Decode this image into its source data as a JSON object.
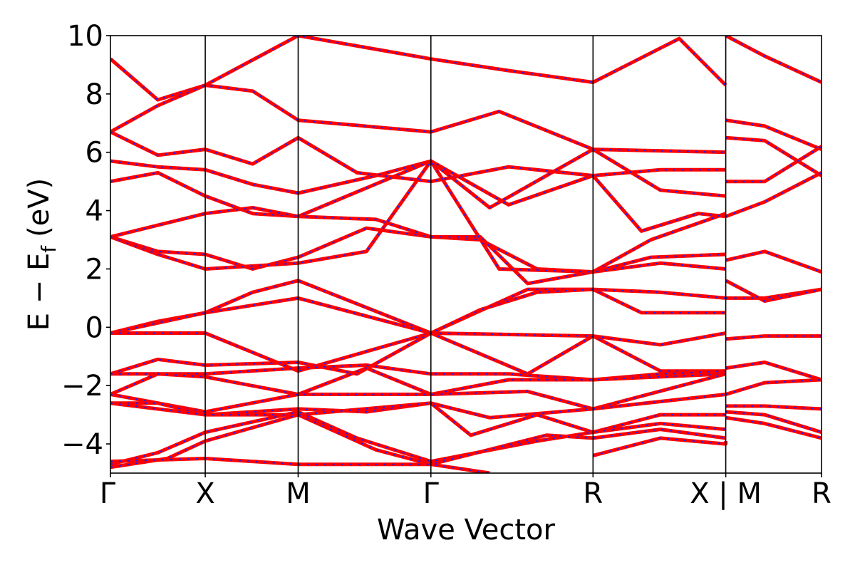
{
  "chart_data": {
    "type": "line",
    "xlabel": "Wave Vector",
    "ylabel_parts": {
      "main": "E − E",
      "sub": "f",
      "unit": "(eV)"
    },
    "ylim": [
      -5,
      10
    ],
    "yticks": [
      {
        "value": 10,
        "label": "10"
      },
      {
        "value": 8,
        "label": "8"
      },
      {
        "value": 6,
        "label": "6"
      },
      {
        "value": 4,
        "label": "4"
      },
      {
        "value": 2,
        "label": "2"
      },
      {
        "value": 0,
        "label": "0"
      },
      {
        "value": -2,
        "label": "−2"
      },
      {
        "value": -4,
        "label": "−4"
      }
    ],
    "xlim": [
      0,
      7.5
    ],
    "high_symmetry_points": [
      {
        "x": 0.0,
        "label": "Γ"
      },
      {
        "x": 1.0,
        "label": "X"
      },
      {
        "x": 1.98,
        "label": "M"
      },
      {
        "x": 3.38,
        "label": "Γ"
      },
      {
        "x": 5.09,
        "label": "R"
      },
      {
        "x": 6.49,
        "label": "X | M"
      },
      {
        "x": 7.5,
        "label": "R"
      }
    ],
    "grid": false,
    "colors": {
      "band_primary": "#ff0000",
      "band_overlay": "#1f1fff",
      "divider": "#000000"
    },
    "series": [
      {
        "values": [
          [
            0,
            9.2
          ],
          [
            0.5,
            7.8
          ],
          [
            1,
            8.3
          ],
          [
            1.98,
            10
          ],
          [
            3.38,
            9.2
          ],
          [
            4.2,
            8.8
          ],
          [
            5.09,
            8.4
          ],
          [
            6,
            9.9
          ],
          [
            6.49,
            8.3
          ]
        ]
      },
      {
        "values": [
          [
            0,
            6.7
          ],
          [
            0.5,
            7.6
          ],
          [
            1,
            8.3
          ],
          [
            1.5,
            8.1
          ],
          [
            1.98,
            7.1
          ],
          [
            3.38,
            6.7
          ],
          [
            4.1,
            7.4
          ],
          [
            5.09,
            6.1
          ],
          [
            6.49,
            6.0
          ]
        ]
      },
      {
        "values": [
          [
            0,
            6.7
          ],
          [
            0.5,
            5.9
          ],
          [
            1,
            6.1
          ],
          [
            1.5,
            5.6
          ],
          [
            1.98,
            6.5
          ],
          [
            2.6,
            5.3
          ],
          [
            3.38,
            5.0
          ],
          [
            4.2,
            5.5
          ],
          [
            5.09,
            5.2
          ],
          [
            5.8,
            5.4
          ],
          [
            6.49,
            5.4
          ]
        ]
      },
      {
        "values": [
          [
            0,
            5.7
          ],
          [
            0.5,
            5.5
          ],
          [
            1,
            5.4
          ],
          [
            1.5,
            4.9
          ],
          [
            1.98,
            4.6
          ],
          [
            2.8,
            5.2
          ],
          [
            3.38,
            5.7
          ],
          [
            4.0,
            4.1
          ],
          [
            5.09,
            6.1
          ],
          [
            5.8,
            4.7
          ],
          [
            6.49,
            4.5
          ]
        ]
      },
      {
        "values": [
          [
            0,
            5.0
          ],
          [
            0.5,
            5.3
          ],
          [
            1,
            4.5
          ],
          [
            1.5,
            3.9
          ],
          [
            1.98,
            3.8
          ],
          [
            2.8,
            3.7
          ],
          [
            3.38,
            3.1
          ],
          [
            3.9,
            3.0
          ],
          [
            4.5,
            2.0
          ],
          [
            5.09,
            1.9
          ],
          [
            5.7,
            3.0
          ],
          [
            6.49,
            3.9
          ]
        ]
      },
      {
        "values": [
          [
            0,
            3.1
          ],
          [
            0.5,
            3.5
          ],
          [
            1,
            3.9
          ],
          [
            1.5,
            4.1
          ],
          [
            1.98,
            3.8
          ],
          [
            3.38,
            5.7
          ],
          [
            4.2,
            4.2
          ],
          [
            5.09,
            5.2
          ],
          [
            5.6,
            3.3
          ],
          [
            6.2,
            3.9
          ],
          [
            6.49,
            3.8
          ]
        ]
      },
      {
        "values": [
          [
            0,
            3.1
          ],
          [
            0.5,
            2.6
          ],
          [
            1,
            2.5
          ],
          [
            1.5,
            2.0
          ],
          [
            1.98,
            2.4
          ],
          [
            2.7,
            3.4
          ],
          [
            3.38,
            3.1
          ],
          [
            3.9,
            3.1
          ],
          [
            4.4,
            1.5
          ],
          [
            5.09,
            1.9
          ],
          [
            5.7,
            2.4
          ],
          [
            6.49,
            2.5
          ]
        ]
      },
      {
        "values": [
          [
            0,
            3.1
          ],
          [
            0.5,
            2.5
          ],
          [
            1,
            2.0
          ],
          [
            1.98,
            2.2
          ],
          [
            2.7,
            2.6
          ],
          [
            3.38,
            5.7
          ],
          [
            4.1,
            2.0
          ],
          [
            5.09,
            1.9
          ],
          [
            5.8,
            2.2
          ],
          [
            6.49,
            2.0
          ]
        ]
      },
      {
        "values": [
          [
            0,
            -0.2
          ],
          [
            0.5,
            0.2
          ],
          [
            1,
            0.5
          ],
          [
            1.5,
            1.2
          ],
          [
            1.98,
            1.6
          ],
          [
            3.38,
            -0.2
          ],
          [
            4.4,
            1.3
          ],
          [
            5.09,
            1.3
          ],
          [
            5.8,
            1.2
          ],
          [
            6.49,
            1.0
          ]
        ]
      },
      {
        "values": [
          [
            0,
            -0.2
          ],
          [
            1,
            0.5
          ],
          [
            1.98,
            1.0
          ],
          [
            3.38,
            -0.2
          ],
          [
            3.9,
            0.6
          ],
          [
            4.5,
            1.2
          ],
          [
            5.09,
            1.3
          ],
          [
            5.6,
            0.5
          ],
          [
            6.49,
            0.5
          ]
        ]
      },
      {
        "values": [
          [
            0,
            -0.2
          ],
          [
            1,
            -0.2
          ],
          [
            1.98,
            -1.5
          ],
          [
            3.38,
            -0.2
          ],
          [
            5.09,
            -0.3
          ],
          [
            5.8,
            -0.6
          ],
          [
            6.49,
            -0.2
          ]
        ]
      },
      {
        "values": [
          [
            0,
            -1.6
          ],
          [
            0.5,
            -1.1
          ],
          [
            1,
            -1.3
          ],
          [
            1.98,
            -1.2
          ],
          [
            2.6,
            -1.6
          ],
          [
            3.38,
            -0.2
          ],
          [
            4.4,
            -1.6
          ],
          [
            5.09,
            -0.3
          ],
          [
            5.8,
            -1.5
          ],
          [
            6.49,
            -1.5
          ]
        ]
      },
      {
        "values": [
          [
            0,
            -1.6
          ],
          [
            1,
            -1.6
          ],
          [
            1.98,
            -1.4
          ],
          [
            2.7,
            -1.3
          ],
          [
            3.38,
            -1.6
          ],
          [
            4.2,
            -1.6
          ],
          [
            5.09,
            -1.8
          ],
          [
            5.8,
            -1.6
          ],
          [
            6.49,
            -1.5
          ]
        ]
      },
      {
        "values": [
          [
            0,
            -2.3
          ],
          [
            0.5,
            -1.6
          ],
          [
            1,
            -1.7
          ],
          [
            1.98,
            -2.3
          ],
          [
            2.7,
            -1.4
          ],
          [
            3.38,
            -2.3
          ],
          [
            4.2,
            -1.8
          ],
          [
            5.09,
            -1.8
          ],
          [
            5.8,
            -1.7
          ],
          [
            6.49,
            -1.6
          ]
        ]
      },
      {
        "values": [
          [
            0,
            -2.3
          ],
          [
            1,
            -2.9
          ],
          [
            1.98,
            -2.3
          ],
          [
            3.38,
            -2.3
          ],
          [
            4.4,
            -2.2
          ],
          [
            5.09,
            -2.8
          ],
          [
            6.49,
            -1.6
          ]
        ]
      },
      {
        "values": [
          [
            0,
            -2.6
          ],
          [
            0.5,
            -2.6
          ],
          [
            1,
            -3.0
          ],
          [
            1.98,
            -2.8
          ],
          [
            2.7,
            -2.9
          ],
          [
            3.38,
            -2.6
          ],
          [
            4.0,
            -3.1
          ],
          [
            5.09,
            -2.8
          ],
          [
            6.49,
            -2.3
          ]
        ]
      },
      {
        "values": [
          [
            0,
            -2.6
          ],
          [
            1,
            -3.0
          ],
          [
            1.98,
            -3.0
          ],
          [
            3.38,
            -2.6
          ],
          [
            3.8,
            -3.7
          ],
          [
            4.5,
            -3.0
          ],
          [
            5.09,
            -3.6
          ],
          [
            5.8,
            -3.0
          ],
          [
            6.49,
            -3.0
          ]
        ]
      },
      {
        "values": [
          [
            0,
            -4.7
          ],
          [
            0.5,
            -4.3
          ],
          [
            1,
            -3.6
          ],
          [
            1.98,
            -2.9
          ],
          [
            2.6,
            -3.8
          ],
          [
            3.38,
            -4.6
          ],
          [
            4.5,
            -3.9
          ],
          [
            5.09,
            -3.6
          ],
          [
            5.8,
            -3.3
          ],
          [
            6.49,
            -3.5
          ]
        ]
      },
      {
        "values": [
          [
            0,
            -4.8
          ],
          [
            0.6,
            -4.5
          ],
          [
            1,
            -3.9
          ],
          [
            1.98,
            -3.0
          ],
          [
            2.8,
            -4.2
          ],
          [
            3.38,
            -4.7
          ],
          [
            4.6,
            -3.7
          ],
          [
            5.09,
            -3.8
          ],
          [
            5.8,
            -3.5
          ],
          [
            6.49,
            -3.8
          ]
        ]
      },
      {
        "values": [
          [
            0,
            -4.6
          ],
          [
            1,
            -4.5
          ],
          [
            1.98,
            -4.7
          ],
          [
            3.38,
            -4.7
          ],
          [
            4.0,
            -5.0
          ]
        ]
      },
      {
        "values": [
          [
            6.49,
            -3.9
          ],
          [
            6.49,
            -4.0
          ],
          [
            5.8,
            -3.8
          ],
          [
            5.09,
            -4.4
          ]
        ]
      },
      {
        "values": [
          [
            6.49,
            7.1
          ],
          [
            6.9,
            6.9
          ],
          [
            7.5,
            6.1
          ]
        ]
      },
      {
        "values": [
          [
            6.49,
            6.5
          ],
          [
            6.9,
            6.4
          ],
          [
            7.5,
            5.2
          ]
        ]
      },
      {
        "values": [
          [
            6.49,
            5.0
          ],
          [
            6.9,
            5.0
          ],
          [
            7.5,
            6.2
          ]
        ]
      },
      {
        "values": [
          [
            6.49,
            3.8
          ],
          [
            6.9,
            4.3
          ],
          [
            7.5,
            5.3
          ]
        ]
      },
      {
        "values": [
          [
            6.49,
            2.3
          ],
          [
            6.9,
            2.6
          ],
          [
            7.5,
            1.9
          ]
        ]
      },
      {
        "values": [
          [
            6.49,
            1.0
          ],
          [
            6.9,
            1.0
          ],
          [
            7.5,
            1.3
          ]
        ]
      },
      {
        "values": [
          [
            6.49,
            1.6
          ],
          [
            6.9,
            0.9
          ],
          [
            7.5,
            1.3
          ]
        ]
      },
      {
        "values": [
          [
            6.49,
            -0.4
          ],
          [
            6.9,
            -0.3
          ],
          [
            7.5,
            -0.3
          ]
        ]
      },
      {
        "values": [
          [
            6.49,
            -1.4
          ],
          [
            6.9,
            -1.2
          ],
          [
            7.5,
            -1.8
          ]
        ]
      },
      {
        "values": [
          [
            6.49,
            -2.3
          ],
          [
            6.9,
            -1.9
          ],
          [
            7.5,
            -1.8
          ]
        ]
      },
      {
        "values": [
          [
            6.49,
            -2.7
          ],
          [
            6.9,
            -2.7
          ],
          [
            7.5,
            -2.8
          ]
        ]
      },
      {
        "values": [
          [
            6.49,
            -2.9
          ],
          [
            6.9,
            -3.0
          ],
          [
            7.5,
            -3.6
          ]
        ]
      },
      {
        "values": [
          [
            6.49,
            -3.1
          ],
          [
            6.9,
            -3.3
          ],
          [
            7.5,
            -3.8
          ]
        ]
      },
      {
        "values": [
          [
            6.49,
            10
          ],
          [
            6.9,
            9.3
          ],
          [
            7.5,
            8.4
          ]
        ]
      }
    ]
  }
}
